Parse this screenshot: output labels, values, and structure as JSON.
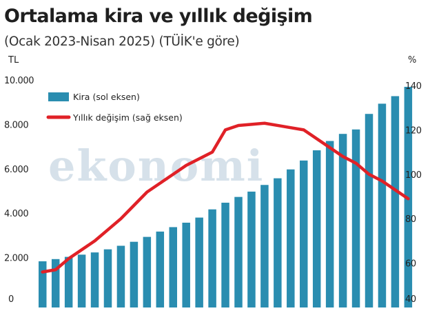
{
  "chart_data": {
    "type": "bar",
    "title": "Ortalama kira ve yıllık değişim",
    "subtitle": "(Ocak 2023-Nisan 2025) (TÜİK'e göre)",
    "left_unit": "TL",
    "right_unit": "%",
    "left_ylim": [
      0,
      10000
    ],
    "right_ylim": [
      40,
      140
    ],
    "left_ticks": [
      "0",
      "2.000",
      "4.000",
      "6.000",
      "8.000",
      "10.000"
    ],
    "left_tick_values": [
      0,
      2000,
      4000,
      6000,
      8000,
      10000
    ],
    "right_ticks": [
      "40",
      "60",
      "80",
      "100",
      "120",
      "140"
    ],
    "right_tick_values": [
      40,
      60,
      80,
      100,
      120,
      140
    ],
    "legend_position": "top-left",
    "grid": false,
    "series": [
      {
        "name": "Kira (sol eksen)",
        "type": "bar",
        "axis": "left",
        "color": "#2a8db0",
        "values": [
          2080,
          2180,
          2280,
          2380,
          2480,
          2620,
          2780,
          2960,
          3180,
          3420,
          3620,
          3820,
          4050,
          4420,
          4720,
          4980,
          5220,
          5520,
          5820,
          6220,
          6620,
          7080,
          7500,
          7820,
          8020,
          8720,
          9180,
          9520,
          9940
        ]
      },
      {
        "name": "Yıllık değişim (sağ eksen)",
        "type": "line",
        "axis": "right",
        "color": "#e02127",
        "values": [
          56,
          57,
          62,
          66,
          70,
          75,
          80,
          86,
          92,
          96,
          100,
          104,
          107,
          110,
          120,
          122,
          122.5,
          123,
          122,
          121,
          120,
          116,
          112,
          108,
          105,
          100,
          97,
          93,
          89
        ]
      }
    ]
  },
  "watermark": "ekonomi",
  "colors": {
    "bar": "#2a8db0",
    "line": "#e02127",
    "watermark": "#d6e1ea"
  }
}
